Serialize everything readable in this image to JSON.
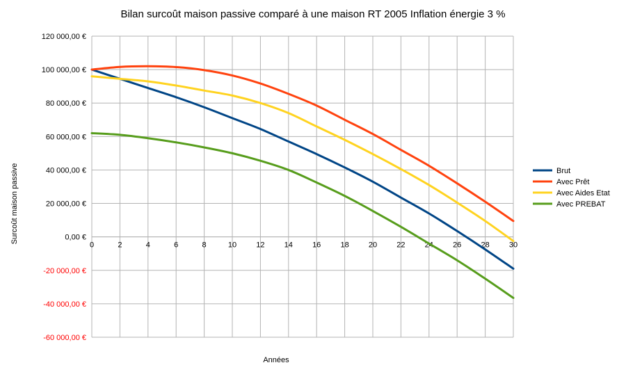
{
  "chart_data": {
    "type": "line",
    "title": "Bilan surcoût maison passive comparé à une maison RT 2005 Inflation énergie 3 %",
    "xlabel": "Années",
    "ylabel": "Surcoût maison passive",
    "xlim": [
      0,
      30
    ],
    "ylim": [
      -60000,
      120000
    ],
    "xticks": [
      0,
      2,
      4,
      6,
      8,
      10,
      12,
      14,
      16,
      18,
      20,
      22,
      24,
      26,
      28,
      30
    ],
    "yticks": [
      {
        "value": 120000,
        "label": "120 000,00 €"
      },
      {
        "value": 100000,
        "label": "100 000,00 €"
      },
      {
        "value": 80000,
        "label": "80 000,00 €"
      },
      {
        "value": 60000,
        "label": "60 000,00 €"
      },
      {
        "value": 40000,
        "label": "40 000,00 €"
      },
      {
        "value": 20000,
        "label": "20 000,00 €"
      },
      {
        "value": 0,
        "label": "0,00 €"
      },
      {
        "value": -20000,
        "label": "-20 000,00 €"
      },
      {
        "value": -40000,
        "label": "-40 000,00 €"
      },
      {
        "value": -60000,
        "label": "-60 000,00 €"
      }
    ],
    "negative_tick_color": "#ff0000",
    "grid": true,
    "legend_position": "right",
    "x": [
      0,
      2,
      4,
      6,
      8,
      10,
      12,
      14,
      16,
      18,
      20,
      22,
      24,
      26,
      28,
      30
    ],
    "series": [
      {
        "name": "Brut",
        "color": "#004586",
        "values": [
          100000,
          94500,
          89000,
          83500,
          77500,
          71000,
          64500,
          57000,
          49500,
          41500,
          33000,
          23500,
          14000,
          3500,
          -7500,
          -19000
        ]
      },
      {
        "name": "Avec Prêt",
        "color": "#ff420e",
        "values": [
          100000,
          101600,
          102000,
          101500,
          99700,
          96500,
          91700,
          85500,
          78500,
          70000,
          61500,
          52000,
          42500,
          32000,
          21000,
          9500
        ]
      },
      {
        "name": "Avec Aides Etat",
        "color": "#ffd320",
        "values": [
          96000,
          94500,
          93000,
          90500,
          87500,
          84500,
          80000,
          74000,
          66000,
          58000,
          49500,
          40500,
          31000,
          20500,
          9500,
          -2500
        ]
      },
      {
        "name": "Avec PREBAT",
        "color": "#579d1c",
        "values": [
          62000,
          61000,
          59000,
          56500,
          53500,
          50000,
          45500,
          40000,
          32500,
          24500,
          15500,
          6000,
          -4000,
          -14000,
          -25000,
          -36500
        ]
      }
    ]
  }
}
